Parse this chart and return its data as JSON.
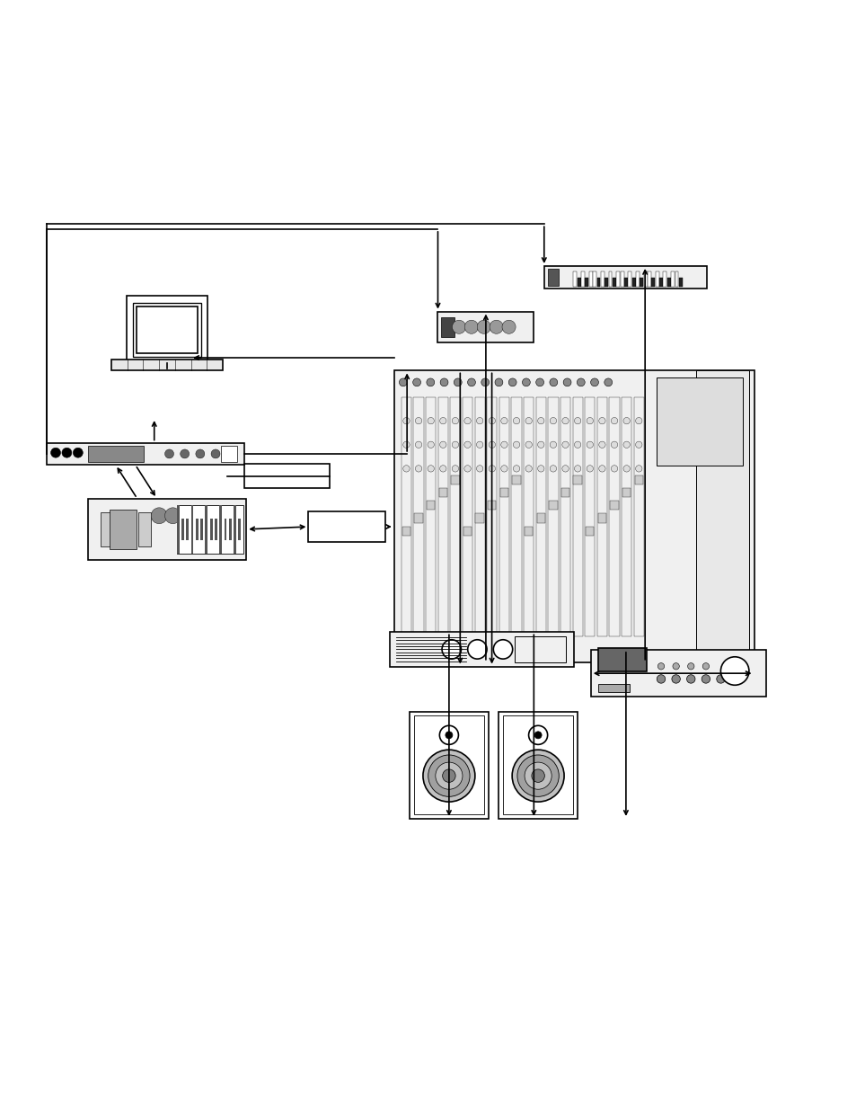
{
  "bg_color": "#ffffff",
  "line_color": "#000000",
  "fig_width": 9.54,
  "fig_height": 12.35,
  "dpi": 100
}
